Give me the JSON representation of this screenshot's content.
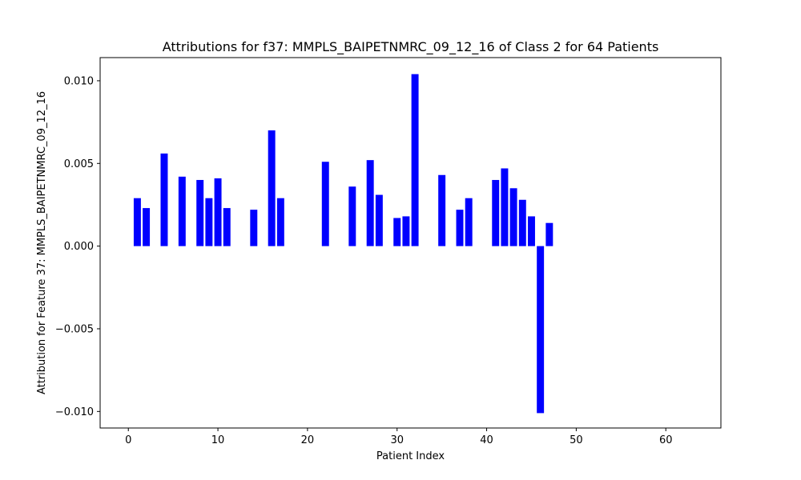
{
  "chart_data": {
    "type": "bar",
    "title": "Attributions for f37: MMPLS_BAIPETNMRC_09_12_16 of Class 2 for 64 Patients",
    "xlabel": "Patient Index",
    "ylabel": "Attribution for Feature 37: MMPLS_BAIPETNMRC_09_12_16",
    "xlim": [
      -3.15,
      66.15
    ],
    "ylim": [
      -0.011,
      0.0114
    ],
    "x_ticks": [
      0,
      10,
      20,
      30,
      40,
      50,
      60
    ],
    "y_ticks": [
      -0.01,
      -0.005,
      0.0,
      0.005,
      0.01
    ],
    "y_tick_labels": [
      "−0.010",
      "−0.005",
      "0.000",
      "0.005",
      "0.010"
    ],
    "bar_color": "#0000ff",
    "bar_width": 0.8,
    "grid": false,
    "x": [
      1,
      2,
      4,
      6,
      8,
      9,
      10,
      11,
      14,
      16,
      17,
      22,
      25,
      27,
      28,
      30,
      31,
      32,
      35,
      37,
      38,
      41,
      42,
      43,
      44,
      45,
      46,
      47
    ],
    "values": [
      0.0029,
      0.0023,
      0.0056,
      0.0042,
      0.004,
      0.0029,
      0.0041,
      0.0023,
      0.0022,
      0.007,
      0.0029,
      0.0051,
      0.0036,
      0.0052,
      0.0031,
      0.0017,
      0.0018,
      0.0104,
      0.0043,
      0.0022,
      0.0029,
      0.004,
      0.0047,
      0.0035,
      0.0028,
      0.0018,
      -0.0101,
      0.0014
    ]
  }
}
